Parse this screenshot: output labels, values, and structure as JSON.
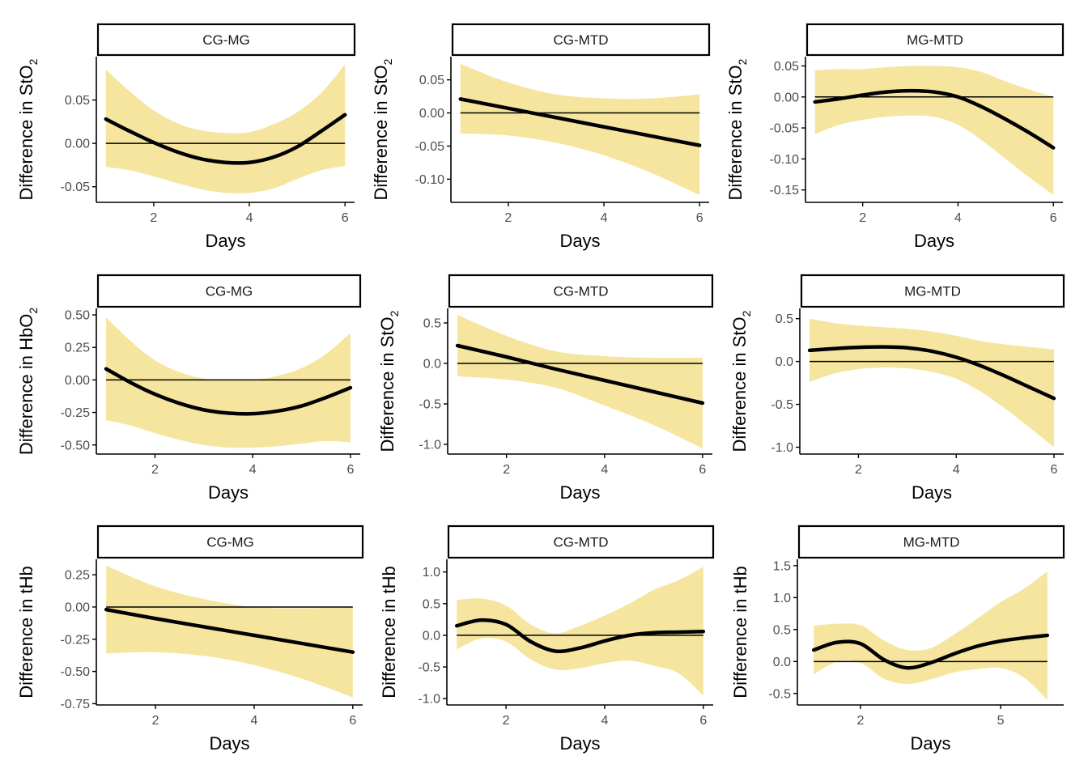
{
  "colors": {
    "band": "#f5e59e",
    "line": "#000000",
    "axis": "#000000",
    "tick_text": "#4d4d4d"
  },
  "chart_data": [
    {
      "type": "line",
      "facet": "CG-MG",
      "xlabel": "Days",
      "ylabel": "Difference in StO",
      "ylabel_sub": "2",
      "xlim": [
        0.8,
        6.2
      ],
      "ylim": [
        -0.068,
        0.1
      ],
      "xticks": [
        2,
        4,
        6
      ],
      "yticks": [
        -0.05,
        0.0,
        0.05
      ],
      "ytick_labels": [
        "-0.05",
        "0.00",
        "0.05"
      ],
      "reference_line": 0,
      "x": [
        1,
        1.5,
        2,
        2.5,
        3,
        3.5,
        4,
        4.5,
        5,
        5.5,
        6
      ],
      "estimate": [
        0.028,
        0.014,
        0.001,
        -0.01,
        -0.018,
        -0.022,
        -0.022,
        -0.016,
        -0.004,
        0.014,
        0.033
      ],
      "lower": [
        -0.027,
        -0.031,
        -0.038,
        -0.046,
        -0.053,
        -0.057,
        -0.057,
        -0.052,
        -0.041,
        -0.031,
        -0.026
      ],
      "upper": [
        0.085,
        0.06,
        0.038,
        0.023,
        0.015,
        0.012,
        0.013,
        0.022,
        0.036,
        0.058,
        0.091
      ]
    },
    {
      "type": "line",
      "facet": "CG-MTD",
      "xlabel": "Days",
      "ylabel": "Difference in StO",
      "ylabel_sub": "2",
      "xlim": [
        0.8,
        6.2
      ],
      "ylim": [
        -0.135,
        0.085
      ],
      "xticks": [
        2,
        4,
        6
      ],
      "yticks": [
        -0.1,
        -0.05,
        0.0,
        0.05
      ],
      "ytick_labels": [
        "-0.10",
        "-0.05",
        "0.00",
        "0.05"
      ],
      "reference_line": 0,
      "x": [
        1,
        2,
        3,
        4,
        5,
        6
      ],
      "estimate": [
        0.021,
        0.007,
        -0.007,
        -0.021,
        -0.035,
        -0.049
      ],
      "lower": [
        -0.031,
        -0.034,
        -0.045,
        -0.064,
        -0.091,
        -0.124
      ],
      "upper": [
        0.074,
        0.046,
        0.028,
        0.022,
        0.022,
        0.028
      ]
    },
    {
      "type": "line",
      "facet": "MG-MTD",
      "xlabel": "Days",
      "ylabel": "Difference in StO",
      "ylabel_sub": "2",
      "xlim": [
        0.8,
        6.2
      ],
      "ylim": [
        -0.17,
        0.065
      ],
      "xticks": [
        2,
        4,
        6
      ],
      "yticks": [
        -0.15,
        -0.1,
        -0.05,
        0.0,
        0.05
      ],
      "ytick_labels": [
        "-0.15",
        "-0.10",
        "-0.05",
        "0.00",
        "0.05"
      ],
      "reference_line": 0,
      "x": [
        1,
        1.5,
        2,
        2.5,
        3,
        3.5,
        4,
        4.5,
        5,
        5.5,
        6
      ],
      "estimate": [
        -0.008,
        -0.003,
        0.003,
        0.008,
        0.01,
        0.008,
        0.0,
        -0.016,
        -0.036,
        -0.058,
        -0.082
      ],
      "lower": [
        -0.06,
        -0.045,
        -0.037,
        -0.032,
        -0.03,
        -0.032,
        -0.045,
        -0.07,
        -0.1,
        -0.13,
        -0.158
      ],
      "upper": [
        0.043,
        0.045,
        0.045,
        0.048,
        0.05,
        0.05,
        0.048,
        0.04,
        0.025,
        0.012,
        0.0
      ]
    },
    {
      "type": "line",
      "facet": "CG-MG",
      "xlabel": "Days",
      "ylabel": "Difference in HbO",
      "ylabel_sub": "2",
      "xlim": [
        0.8,
        6.2
      ],
      "ylim": [
        -0.57,
        0.55
      ],
      "xticks": [
        2,
        4,
        6
      ],
      "yticks": [
        -0.5,
        -0.25,
        0.0,
        0.25,
        0.5
      ],
      "ytick_labels": [
        "-0.50",
        "-0.25",
        "0.00",
        "0.25",
        "0.50"
      ],
      "reference_line": 0,
      "x": [
        1,
        1.5,
        2,
        2.5,
        3,
        3.5,
        4,
        4.5,
        5,
        5.5,
        6
      ],
      "estimate": [
        0.085,
        -0.02,
        -0.11,
        -0.18,
        -0.23,
        -0.255,
        -0.26,
        -0.24,
        -0.2,
        -0.135,
        -0.06
      ],
      "lower": [
        -0.31,
        -0.35,
        -0.41,
        -0.46,
        -0.5,
        -0.52,
        -0.52,
        -0.51,
        -0.49,
        -0.47,
        -0.48
      ],
      "upper": [
        0.48,
        0.3,
        0.15,
        0.06,
        0.01,
        0.0,
        0.0,
        0.03,
        0.09,
        0.2,
        0.36
      ]
    },
    {
      "type": "line",
      "facet": "CG-MTD",
      "xlabel": "Days",
      "ylabel": "Difference in StO",
      "ylabel_sub": "2",
      "xlim": [
        0.8,
        6.2
      ],
      "ylim": [
        -1.12,
        0.68
      ],
      "xticks": [
        2,
        4,
        6
      ],
      "yticks": [
        -1.0,
        -0.5,
        0.0,
        0.5
      ],
      "ytick_labels": [
        "-1.0",
        "-0.5",
        "0.0",
        "0.5"
      ],
      "reference_line": 0,
      "x": [
        1,
        2,
        3,
        4,
        5,
        6
      ],
      "estimate": [
        0.22,
        0.08,
        -0.07,
        -0.21,
        -0.35,
        -0.49
      ],
      "lower": [
        -0.16,
        -0.2,
        -0.3,
        -0.52,
        -0.76,
        -1.05
      ],
      "upper": [
        0.6,
        0.34,
        0.15,
        0.09,
        0.07,
        0.07
      ]
    },
    {
      "type": "line",
      "facet": "MG-MTD",
      "xlabel": "Days",
      "ylabel": "Difference in StO",
      "ylabel_sub": "2",
      "xlim": [
        0.8,
        6.2
      ],
      "ylim": [
        -1.08,
        0.62
      ],
      "xticks": [
        2,
        4,
        6
      ],
      "yticks": [
        -1.0,
        -0.5,
        0.0,
        0.5
      ],
      "ytick_labels": [
        "-1.0",
        "-0.5",
        "0.0",
        "0.5"
      ],
      "reference_line": 0,
      "x": [
        1,
        1.5,
        2,
        2.5,
        3,
        3.5,
        4,
        4.5,
        5,
        5.5,
        6
      ],
      "estimate": [
        0.13,
        0.15,
        0.165,
        0.17,
        0.16,
        0.12,
        0.05,
        -0.05,
        -0.17,
        -0.3,
        -0.43
      ],
      "lower": [
        -0.24,
        -0.14,
        -0.09,
        -0.07,
        -0.08,
        -0.12,
        -0.2,
        -0.35,
        -0.55,
        -0.77,
        -1.0
      ],
      "upper": [
        0.5,
        0.45,
        0.42,
        0.4,
        0.38,
        0.35,
        0.3,
        0.24,
        0.2,
        0.17,
        0.14
      ]
    },
    {
      "type": "line",
      "facet": "CG-MG",
      "xlabel": "Days",
      "ylabel": "Difference in tHb",
      "ylabel_sub": "",
      "xlim": [
        0.8,
        6.2
      ],
      "ylim": [
        -0.76,
        0.37
      ],
      "xticks": [
        2,
        4,
        6
      ],
      "yticks": [
        -0.75,
        -0.5,
        -0.25,
        0.0,
        0.25
      ],
      "ytick_labels": [
        "-0.75",
        "-0.50",
        "-0.25",
        "0.00",
        "0.25"
      ],
      "reference_line": 0,
      "x": [
        1,
        2,
        3,
        4,
        5,
        6
      ],
      "estimate": [
        -0.02,
        -0.09,
        -0.155,
        -0.22,
        -0.285,
        -0.35
      ],
      "lower": [
        -0.36,
        -0.35,
        -0.38,
        -0.45,
        -0.56,
        -0.7
      ],
      "upper": [
        0.32,
        0.16,
        0.06,
        0.0,
        -0.01,
        0.0
      ]
    },
    {
      "type": "line",
      "facet": "CG-MTD",
      "xlabel": "Days",
      "ylabel": "Difference in tHb",
      "ylabel_sub": "",
      "xlim": [
        0.8,
        6.2
      ],
      "ylim": [
        -1.1,
        1.2
      ],
      "xticks": [
        2,
        4,
        6
      ],
      "yticks": [
        -1.0,
        -0.5,
        0.0,
        0.5,
        1.0
      ],
      "ytick_labels": [
        "-1.0",
        "-0.5",
        "0.0",
        "0.5",
        "1.0"
      ],
      "reference_line": 0,
      "x": [
        1,
        1.5,
        2,
        2.5,
        3,
        3.5,
        4,
        4.5,
        5,
        5.5,
        6
      ],
      "estimate": [
        0.15,
        0.24,
        0.17,
        -0.1,
        -0.25,
        -0.2,
        -0.09,
        0.0,
        0.04,
        0.05,
        0.06
      ],
      "lower": [
        -0.22,
        -0.05,
        -0.1,
        -0.38,
        -0.54,
        -0.52,
        -0.44,
        -0.4,
        -0.48,
        -0.6,
        -0.95
      ],
      "upper": [
        0.56,
        0.58,
        0.47,
        0.17,
        0.03,
        0.15,
        0.31,
        0.5,
        0.72,
        0.87,
        1.08
      ]
    },
    {
      "type": "line",
      "facet": "MG-MTD",
      "xlabel": "Days",
      "ylabel": "Difference in tHb",
      "ylabel_sub": "",
      "xlim": [
        0.65,
        6.35
      ],
      "ylim": [
        -0.68,
        1.6
      ],
      "xticks": [
        2,
        5
      ],
      "yticks": [
        -0.5,
        0.0,
        0.5,
        1.0,
        1.5
      ],
      "ytick_labels": [
        "-0.5",
        "0.0",
        "0.5",
        "1.0",
        "1.5"
      ],
      "reference_line": 0,
      "x": [
        1,
        1.5,
        2,
        2.5,
        3,
        3.5,
        4,
        4.5,
        5,
        5.5,
        6
      ],
      "estimate": [
        0.18,
        0.3,
        0.28,
        0.03,
        -0.1,
        -0.02,
        0.12,
        0.24,
        0.32,
        0.37,
        0.41
      ],
      "lower": [
        -0.2,
        0.0,
        -0.02,
        -0.27,
        -0.35,
        -0.28,
        -0.17,
        -0.12,
        -0.1,
        -0.25,
        -0.6
      ],
      "upper": [
        0.56,
        0.59,
        0.57,
        0.33,
        0.18,
        0.21,
        0.42,
        0.67,
        0.93,
        1.14,
        1.41
      ]
    }
  ]
}
